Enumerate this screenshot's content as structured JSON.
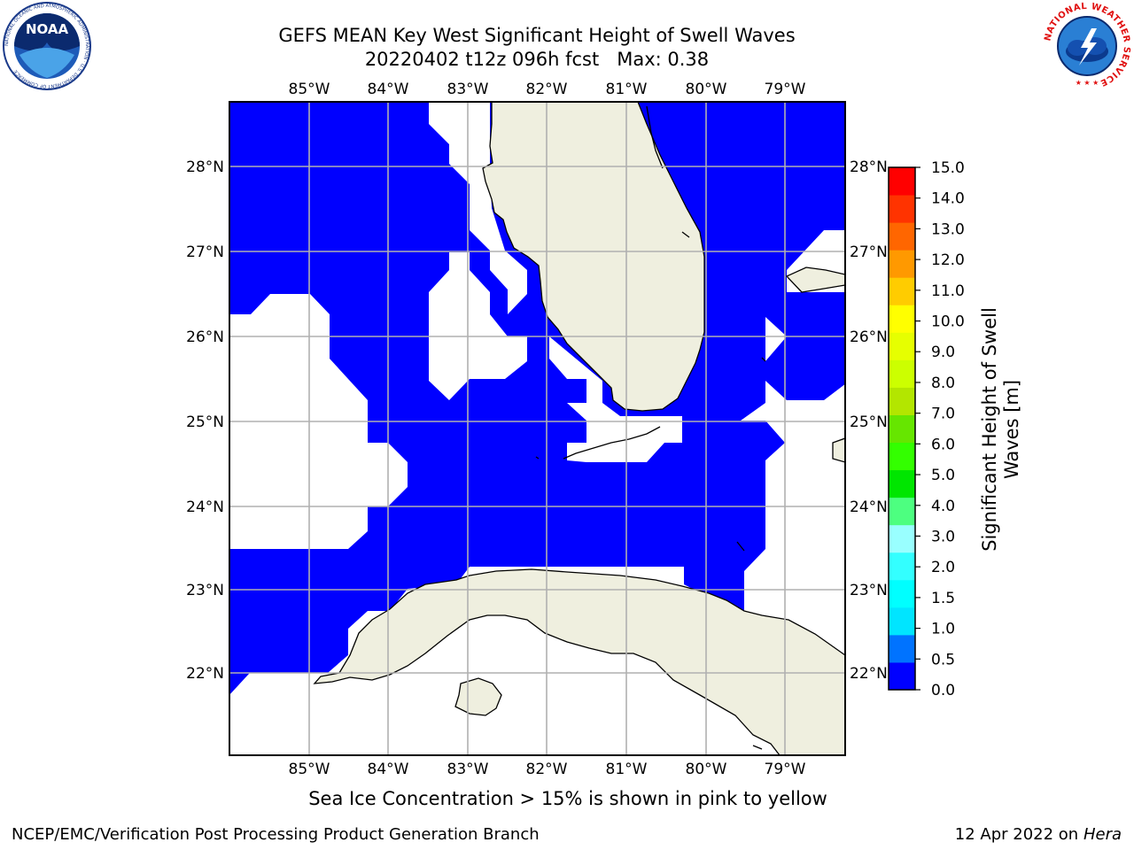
{
  "header": {
    "title_line1": "GEFS MEAN Key West Significant Height of Swell Waves",
    "title_line2": "20220402 t12z 096h fcst   Max: 0.38"
  },
  "map": {
    "lon_labels": [
      "85°W",
      "84°W",
      "83°W",
      "82°W",
      "81°W",
      "80°W",
      "79°W"
    ],
    "lat_labels": [
      "28°N",
      "27°N",
      "26°N",
      "25°N",
      "24°N",
      "23°N",
      "22°N"
    ],
    "ocean_fill_color": "#0000ff",
    "land_color": "#efefdf",
    "grid_color": "#b0b0b0"
  },
  "colorbar": {
    "label_line1": "Significant Height of Swell",
    "label_line2": "Waves [m]",
    "ticks": [
      "0.0",
      "0.5",
      "1.0",
      "1.5",
      "2.0",
      "3.0",
      "4.0",
      "5.0",
      "6.0",
      "7.0",
      "8.0",
      "9.0",
      "10.0",
      "11.0",
      "12.0",
      "13.0",
      "14.0",
      "15.0"
    ],
    "colors": [
      "#0000ff",
      "#0073ff",
      "#00e5ff",
      "#00ffff",
      "#33ffff",
      "#99ffff",
      "#4dff80",
      "#00e600",
      "#33ff00",
      "#66e600",
      "#b3e600",
      "#ccff00",
      "#e6ff00",
      "#ffff00",
      "#ffcc00",
      "#ff9900",
      "#ff6600",
      "#ff3300",
      "#ff0000"
    ]
  },
  "note": "Sea Ice Concentration > 15% is shown in pink to yellow",
  "footer": {
    "left": "NCEP/EMC/Verification Post Processing Product Generation Branch",
    "date": "12 Apr 2022 on ",
    "machine": "Hera"
  },
  "logos": {
    "noaa_text": "NOAA",
    "noaa_ring_text": "NATIONAL OCEANIC AND ATMOSPHERIC ADMINISTRATION · U.S. DEPARTMENT OF COMMERCE",
    "nws_ring_text": "NATIONAL WEATHER SERVICE"
  }
}
